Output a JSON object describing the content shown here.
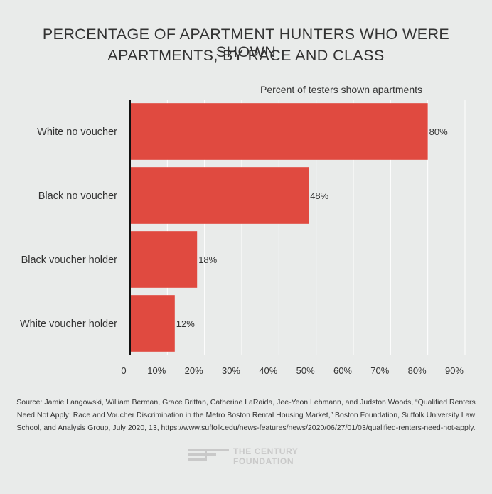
{
  "title_line1": "PERCENTAGE OF APARTMENT HUNTERS WHO WERE SHOWN",
  "title_line2": "APARTMENTS, BY RACE AND CLASS",
  "source_line1": "Source: Jamie Langowski, William Berman, Grace Brittan, Catherine LaRaida, Jee-Yeon Lehmann, and Judston Woods, “Qualified Renters",
  "source_line2": "Need Not Apply: Race and Voucher Discrimination in the Metro Boston Rental Housing Market,” Boston Foundation, Suffolk University Law",
  "source_line3": "School, and Analysis Group, July 2020, 13, https://www.suffolk.edu/news-features/news/2020/06/27/01/03/qualified-renters-need-not-apply.",
  "logo": {
    "line1": "THE CENTURY",
    "line2": "FOUNDATION",
    "color": "#c9c9c9"
  },
  "chart_data": {
    "type": "bar",
    "orientation": "horizontal",
    "axis_title": "Percent of testers shown apartments",
    "categories": [
      "White no voucher",
      "Black no voucher",
      "Black voucher holder",
      "White voucher holder"
    ],
    "values": [
      80,
      48,
      18,
      12
    ],
    "value_labels": [
      "80%",
      "48%",
      "18%",
      "12%"
    ],
    "xlim": [
      0,
      90
    ],
    "xticks": [
      0,
      10,
      20,
      30,
      40,
      50,
      60,
      70,
      80,
      90
    ],
    "xtick_labels": [
      "0",
      "10%",
      "20%",
      "30%",
      "40%",
      "50%",
      "60%",
      "70%",
      "80%",
      "90%"
    ],
    "grid": true,
    "bar_color": "#e04a40"
  }
}
